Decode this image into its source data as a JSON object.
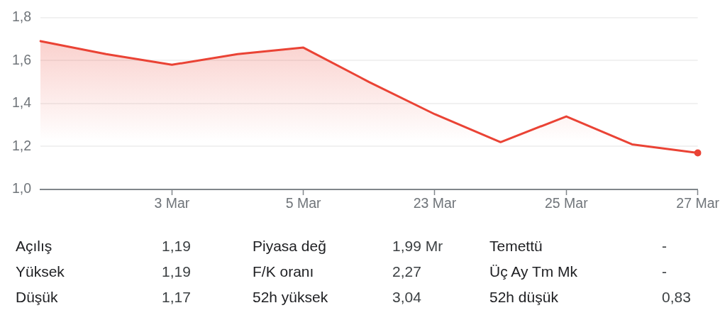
{
  "chart_data": {
    "type": "area",
    "categories": [
      null,
      null,
      "3 Mar",
      null,
      "5 Mar",
      null,
      "23 Mar",
      null,
      "25 Mar",
      null,
      "27 Mar"
    ],
    "series": [
      {
        "color": "#ea4335",
        "values": [
          1.69,
          1.63,
          1.58,
          1.63,
          1.66,
          1.5,
          1.35,
          1.22,
          1.34,
          1.21,
          1.17
        ]
      },
      {
        "type": "scatter",
        "color": "#ea4335",
        "marker": "circle",
        "values": [
          null,
          null,
          null,
          null,
          null,
          null,
          null,
          null,
          null,
          null,
          1.17
        ]
      }
    ],
    "ylim": [
      1.0,
      1.8
    ],
    "yticks": [
      {
        "value": 1.0,
        "label": "1,0"
      },
      {
        "value": 1.2,
        "label": "1,2"
      },
      {
        "value": 1.4,
        "label": "1,4"
      },
      {
        "value": 1.6,
        "label": "1,6"
      },
      {
        "value": 1.8,
        "label": "1,8"
      }
    ],
    "grid": "y",
    "marker": "none",
    "annotations": [
      "Açılış",
      "1,19",
      "Piyasa değ",
      "1,99 Mr",
      "Temettü",
      "-",
      "Yüksek",
      "1,19",
      "F/K oranı",
      "2,27",
      "Üç Ay Tm Mk",
      "-",
      "Düşük",
      "1,17",
      "52h yüksek",
      "3,04",
      "52h düşük",
      "0,83"
    ]
  }
}
